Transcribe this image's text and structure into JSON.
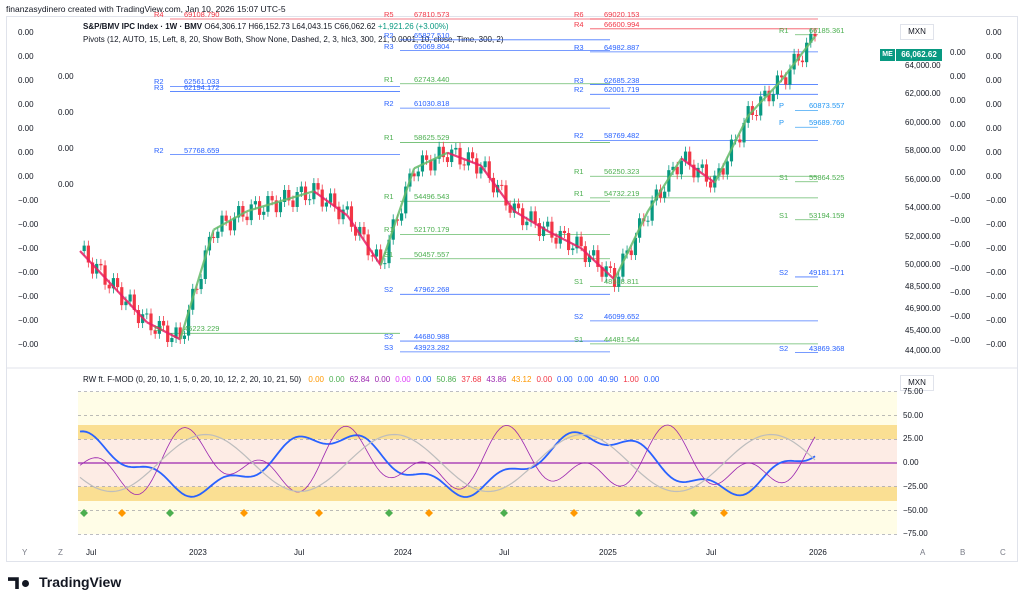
{
  "header": {
    "title": "finanzasydinero created with TradingView.com, Jan 10, 2026 15:07 UTC-5"
  },
  "legend": {
    "symbol": "S&P/BMV IPC Index · 1W · BMV",
    "ohlc": "O64,306.17  H66,152.73  L64,043.15  C66,062.62",
    "change": "+1,921.26 (+3.00%)",
    "pivots": "Pivots (12, AUTO, 15, Left, 8, 20, Show Both, Show None, Dashed, 2, 3, hlc3, 300, 21, 0.0001, 10, close, Time, 300, 2)"
  },
  "osc_legend": {
    "name": "RW ft. F-MOD (0, 20, 10, 1, 5, 0, 20, 10, 12, 2, 20, 10, 21, 50)",
    "values": [
      {
        "v": "0.00",
        "c": "#ff9800"
      },
      {
        "v": "0.00",
        "c": "#4caf50"
      },
      {
        "v": "62.84",
        "c": "#9c27b0"
      },
      {
        "v": "0.00",
        "c": "#9c27b0"
      },
      {
        "v": "0.00",
        "c": "#e040fb"
      },
      {
        "v": "0.00",
        "c": "#2962ff"
      },
      {
        "v": "50.86",
        "c": "#4caf50"
      },
      {
        "v": "37.68",
        "c": "#f23645"
      },
      {
        "v": "43.86",
        "c": "#9c27b0"
      },
      {
        "v": "43.12",
        "c": "#ff9800"
      },
      {
        "v": "0.00",
        "c": "#f23645"
      },
      {
        "v": "0.00",
        "c": "#2962ff"
      },
      {
        "v": "0.00",
        "c": "#2962ff"
      },
      {
        "v": "40.90",
        "c": "#2962ff"
      },
      {
        "v": "1.00",
        "c": "#f23645"
      },
      {
        "v": "0.00",
        "c": "#2962ff"
      }
    ]
  },
  "currency": {
    "main": "MXN",
    "osc": "MXN"
  },
  "price_tag": {
    "label": "ME",
    "value": "66,062.62"
  },
  "price_axis": [
    "64,000.00",
    "62,000.00",
    "60,000.00",
    "58,000.00",
    "56,000.00",
    "54,000.00",
    "52,000.00",
    "50,000.00",
    "48,500.00",
    "46,900.00",
    "45,400.00",
    "44,000.00"
  ],
  "osc_axis": [
    "75.00",
    "50.00",
    "25.00",
    "0.00",
    "−25.00",
    "−50.00",
    "−75.00"
  ],
  "left_col_1": [
    "0.00",
    "0.00",
    "0.00",
    "0.00",
    "0.00",
    "0.00",
    "0.00",
    "−0.00",
    "−0.00",
    "−0.00",
    "−0.00",
    "−0.00",
    "−0.00",
    "−0.00"
  ],
  "left_col_2": [
    "0.00",
    "0.00",
    "0.00",
    "0.00"
  ],
  "right_col_1": [
    "0.00",
    "0.00",
    "0.00",
    "0.00",
    "0.00",
    "0.00",
    "−0.00",
    "−0.00",
    "−0.00",
    "−0.00",
    "−0.00",
    "−0.00",
    "−0.00"
  ],
  "right_col_2": [
    "0.00",
    "0.00",
    "0.00",
    "0.00",
    "0.00",
    "0.00",
    "0.00",
    "−0.00",
    "−0.00",
    "−0.00",
    "−0.00",
    "−0.00",
    "−0.00",
    "−0.00"
  ],
  "x_axis": [
    "Jul",
    "2023",
    "Jul",
    "2024",
    "Jul",
    "2025",
    "Jul",
    "2026"
  ],
  "corners": {
    "left": [
      "Y",
      "Z"
    ],
    "right": [
      "A",
      "B",
      "C"
    ]
  },
  "footer": {
    "brand": "TradingView"
  },
  "colors": {
    "up": "#089981",
    "down": "#f23645",
    "pivot_r": "#f23645",
    "pivot_s": "#2962ff",
    "pivot_p": "#2196f3",
    "zigzag_up": "#66bb6a",
    "zigzag_down": "#e91e63"
  },
  "chart_data": {
    "type": "line",
    "title": "S&P/BMV IPC Index · 1W · BMV",
    "ylabel": "MXN",
    "ylim": [
      43000,
      67500
    ],
    "x": [
      "2022-05",
      "2022-07",
      "2022-09",
      "2022-11",
      "2023-01",
      "2023-03",
      "2023-05",
      "2023-07",
      "2023-09",
      "2023-11",
      "2024-01",
      "2024-03",
      "2024-05",
      "2024-07",
      "2024-09",
      "2024-11",
      "2025-01",
      "2025-03",
      "2025-05",
      "2025-07",
      "2025-09",
      "2025-11",
      "2026-01"
    ],
    "series": [
      {
        "values": [
          51000,
          48500,
          46000,
          44800,
          52500,
          53800,
          54500,
          55200,
          53500,
          50000,
          56800,
          57900,
          57000,
          53800,
          52400,
          51200,
          49000,
          53800,
          57500,
          55800,
          60500,
          63000,
          66062
        ]
      }
    ],
    "pivot_levels": [
      {
        "label": "R4",
        "value": "69108.790"
      },
      {
        "label": "R6",
        "value": "69020.153"
      },
      {
        "label": "R5",
        "value": "67810.573"
      },
      {
        "label": "R4",
        "value": "66600.994"
      },
      {
        "label": "R1",
        "value": "66185.361"
      },
      {
        "label": "R2",
        "value": "65827.510"
      },
      {
        "label": "R3",
        "value": "65069.804"
      },
      {
        "label": "R3",
        "value": "64982.887"
      },
      {
        "label": "R1",
        "value": "62743.440"
      },
      {
        "label": "R3",
        "value": "62685.238"
      },
      {
        "label": "R2",
        "value": "62561.033"
      },
      {
        "label": "R2",
        "value": "62001.719"
      },
      {
        "label": "R3",
        "value": "62194.172"
      },
      {
        "label": "R2",
        "value": "61030.818"
      },
      {
        "label": "P",
        "value": "60873.557"
      },
      {
        "label": "P",
        "value": "59689.760"
      },
      {
        "label": "R2",
        "value": "58769.482"
      },
      {
        "label": "R1",
        "value": "58625.529"
      },
      {
        "label": "R2",
        "value": "57768.659"
      },
      {
        "label": "R1",
        "value": "56250.323"
      },
      {
        "label": "S1",
        "value": "55864.525"
      },
      {
        "label": "R1",
        "value": "54732.219"
      },
      {
        "label": "R1",
        "value": "54496.543"
      },
      {
        "label": "S1",
        "value": "53194.159"
      },
      {
        "label": "R1",
        "value": "52170.179"
      },
      {
        "label": "S1",
        "value": "50457.557"
      },
      {
        "label": "S2",
        "value": "49181.171"
      },
      {
        "label": "S1",
        "value": "48518.811"
      },
      {
        "label": "S2",
        "value": "47962.268"
      },
      {
        "label": "S2",
        "value": "46099.652"
      },
      {
        "label": "S1",
        "value": "45223.229"
      },
      {
        "label": "S2",
        "value": "44680.988"
      },
      {
        "label": "S1",
        "value": "44481.544"
      },
      {
        "label": "S3",
        "value": "43923.282"
      },
      {
        "label": "S2",
        "value": "43869.368"
      }
    ]
  }
}
